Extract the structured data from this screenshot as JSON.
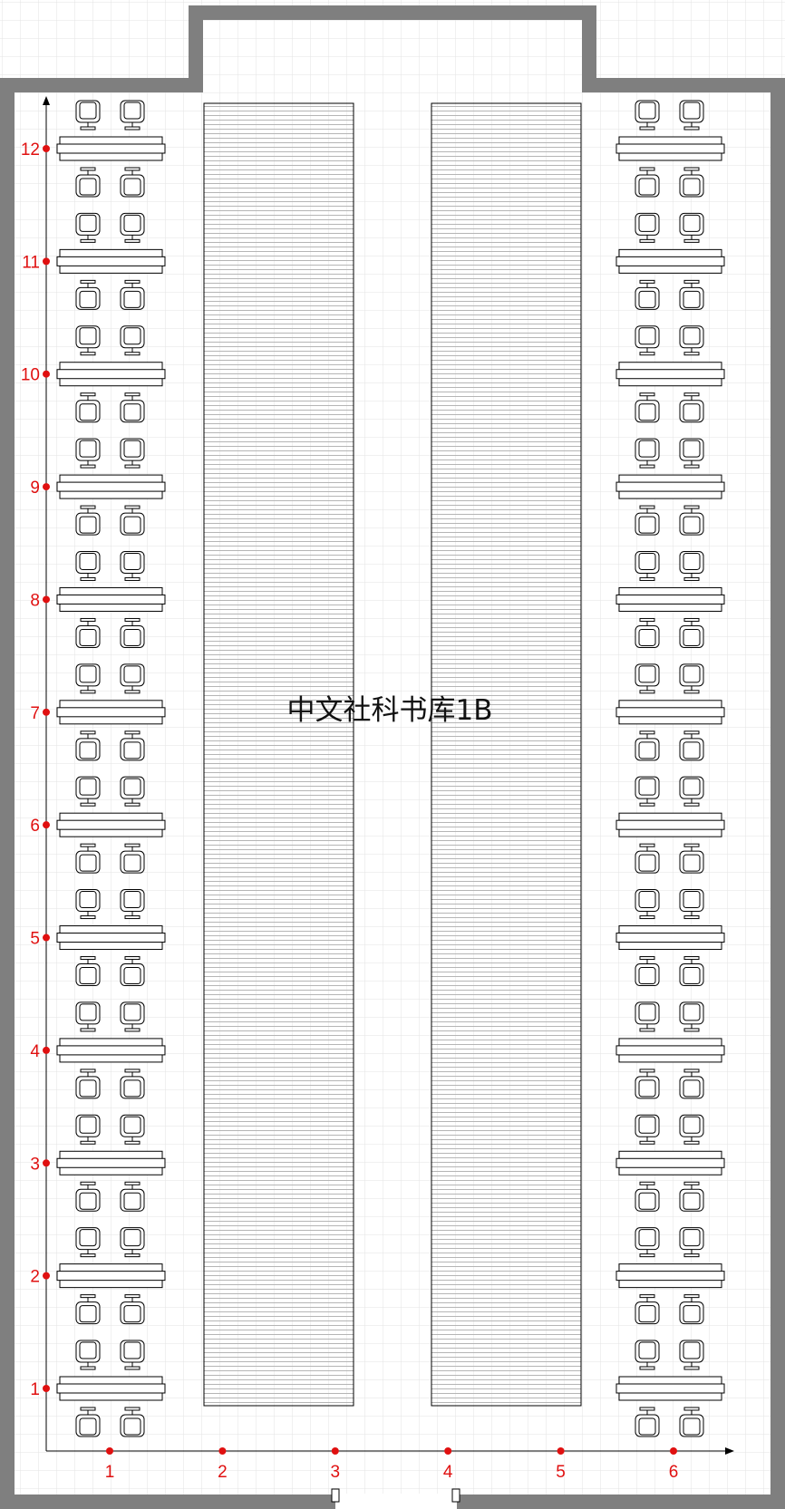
{
  "room": {
    "title": "中文社科书库1B"
  },
  "axes": {
    "x_labels": [
      "1",
      "2",
      "3",
      "4",
      "5",
      "6"
    ],
    "y_labels": [
      "1",
      "2",
      "3",
      "4",
      "5",
      "6",
      "7",
      "8",
      "9",
      "10",
      "11",
      "12"
    ]
  },
  "layout": {
    "bookshelf_count": 2,
    "desk_groups_per_side": 12,
    "seats_per_desk_group": 4
  },
  "colors": {
    "wall": "#7f7f7f",
    "grid": "#e3e3e3",
    "marker": "#e01010",
    "line": "#000000",
    "shelf_line": "#b5b5b5"
  }
}
